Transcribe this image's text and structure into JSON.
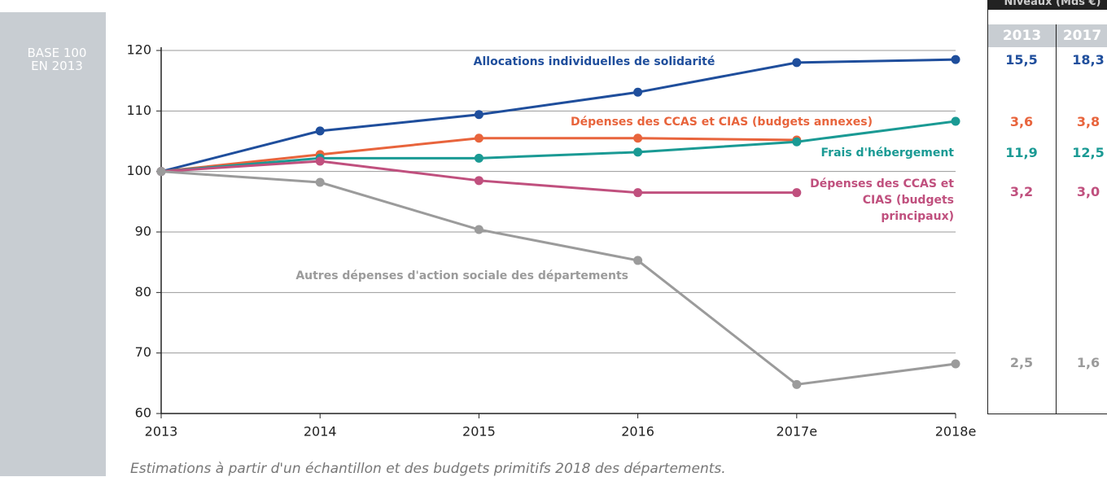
{
  "chart_data": {
    "type": "line",
    "side_label": "BASE 100 EN 2013",
    "categories": [
      "2013",
      "2014",
      "2015",
      "2016",
      "2017e",
      "2018e"
    ],
    "series": [
      {
        "name": "Allocations individuelles de solidarité",
        "color": "#1f4e9c",
        "values": [
          100,
          106.7,
          109.4,
          113.1,
          118.0,
          118.5
        ]
      },
      {
        "name": "Dépenses des CCAS et CIAS (budgets annexes)",
        "color": "#e8643c",
        "values": [
          100,
          102.8,
          105.5,
          105.5,
          105.2,
          null
        ]
      },
      {
        "name": "Frais d'hébergement",
        "color": "#1a9a94",
        "values": [
          100,
          102.2,
          102.2,
          103.2,
          104.9,
          108.3
        ]
      },
      {
        "name": "Dépenses des CCAS et CIAS (budgets principaux)",
        "color": "#c0507e",
        "values": [
          100,
          101.7,
          98.5,
          96.5,
          96.5,
          null
        ]
      },
      {
        "name": "Autres dépenses d'action sociale des départements",
        "color": "#9b9b9b",
        "values": [
          100,
          98.2,
          90.4,
          85.3,
          64.8,
          68.2
        ]
      }
    ],
    "ylim": [
      60,
      120
    ],
    "yticks": [
      60,
      70,
      80,
      90,
      100,
      110,
      120
    ],
    "grid": true,
    "note": "Estimations à partir d'un échantillon et des budgets primitifs 2018 des départements."
  },
  "table": {
    "title": "Niveaux (Mds €)",
    "columns": [
      "2013",
      "2017"
    ],
    "rows": [
      [
        "15,5",
        "18,3"
      ],
      [
        "3,6",
        "3,8"
      ],
      [
        "11,9",
        "12,5"
      ],
      [
        "3,2",
        "3,0"
      ],
      [
        "2,5",
        "1,6"
      ]
    ]
  }
}
